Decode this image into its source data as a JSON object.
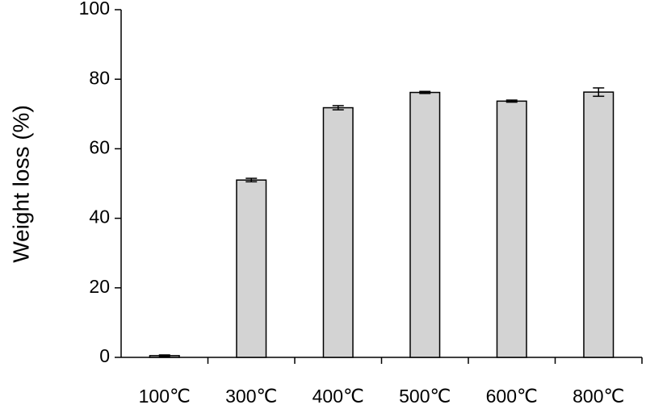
{
  "chart_data": {
    "type": "bar",
    "y_label": "Weight loss (%)",
    "categories": [
      "100℃",
      "300℃",
      "400℃",
      "500℃",
      "600℃",
      "800℃"
    ],
    "values": [
      0.5,
      51,
      71.8,
      76.2,
      73.7,
      76.3
    ],
    "errors": [
      0.2,
      0.5,
      0.6,
      0.3,
      0.3,
      1.2
    ],
    "color": "#d3d3d3",
    "ylim": [
      0,
      100
    ],
    "yticks": [
      0,
      20,
      40,
      60,
      80,
      100
    ],
    "grid": false
  }
}
